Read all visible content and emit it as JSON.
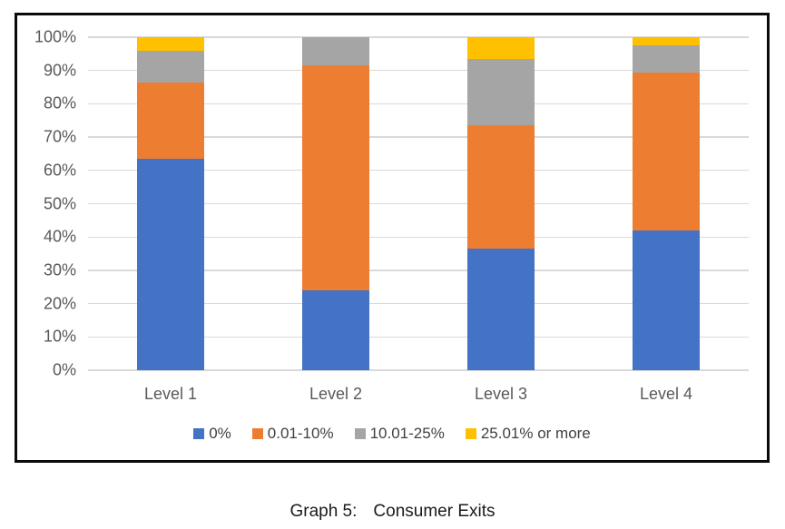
{
  "caption": {
    "prefix": "Graph 5:",
    "text": "Consumer Exits"
  },
  "colors": {
    "background": "#FFFFFF",
    "frame_border": "#0A0A0A",
    "gridline": "#D9D9D9",
    "axis_text": "#595959",
    "legend_text": "#404040",
    "caption_text": "#1A1A1A"
  },
  "chart_data": {
    "type": "bar",
    "variant": "stacked-100-percent",
    "title": "Graph 5: Consumer Exits",
    "xlabel": "",
    "ylabel": "",
    "categories": [
      "Level 1",
      "Level 2",
      "Level 3",
      "Level 4"
    ],
    "series": [
      {
        "name": "0%",
        "color": "#4472C4",
        "values": [
          63.5,
          24,
          36.5,
          42
        ]
      },
      {
        "name": "0.01-10%",
        "color": "#ED7D31",
        "values": [
          23,
          67.5,
          37,
          47.5
        ]
      },
      {
        "name": "10.01-25%",
        "color": "#A5A5A5",
        "values": [
          9.5,
          8.5,
          20,
          8
        ]
      },
      {
        "name": "25.01% or more",
        "color": "#FFC000",
        "values": [
          4,
          0,
          6.5,
          2.5
        ]
      }
    ],
    "y_ticks": [
      "100%",
      "90%",
      "80%",
      "70%",
      "60%",
      "50%",
      "40%",
      "30%",
      "20%",
      "10%",
      "0%"
    ],
    "ylim": [
      0,
      100
    ],
    "grid": true,
    "legend_position": "bottom"
  }
}
